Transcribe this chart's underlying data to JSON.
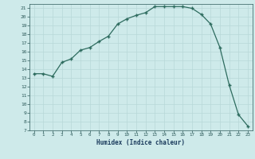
{
  "x": [
    0,
    1,
    2,
    3,
    4,
    5,
    6,
    7,
    8,
    9,
    10,
    11,
    12,
    13,
    14,
    15,
    16,
    17,
    18,
    19,
    20,
    21,
    22,
    23
  ],
  "y": [
    13.5,
    13.5,
    13.2,
    14.8,
    15.2,
    16.2,
    16.5,
    17.2,
    17.8,
    19.2,
    19.8,
    20.2,
    20.5,
    21.2,
    21.2,
    21.2,
    21.2,
    21.0,
    20.3,
    19.2,
    16.5,
    12.2,
    8.8,
    7.5
  ],
  "xlabel": "Humidex (Indice chaleur)",
  "xlim": [
    -0.5,
    23.5
  ],
  "ylim": [
    7,
    21.5
  ],
  "yticks": [
    7,
    8,
    9,
    10,
    11,
    12,
    13,
    14,
    15,
    16,
    17,
    18,
    19,
    20,
    21
  ],
  "xticks": [
    0,
    1,
    2,
    3,
    4,
    5,
    6,
    7,
    8,
    9,
    10,
    11,
    12,
    13,
    14,
    15,
    16,
    17,
    18,
    19,
    20,
    21,
    22,
    23
  ],
  "line_color": "#2d6b5e",
  "marker": "+",
  "bg_color": "#ceeaea",
  "grid_major_color": "#b8d8d8",
  "grid_minor_color": "#c8e4e4",
  "tick_color": "#2d5a5a",
  "label_color": "#1a3a5c"
}
